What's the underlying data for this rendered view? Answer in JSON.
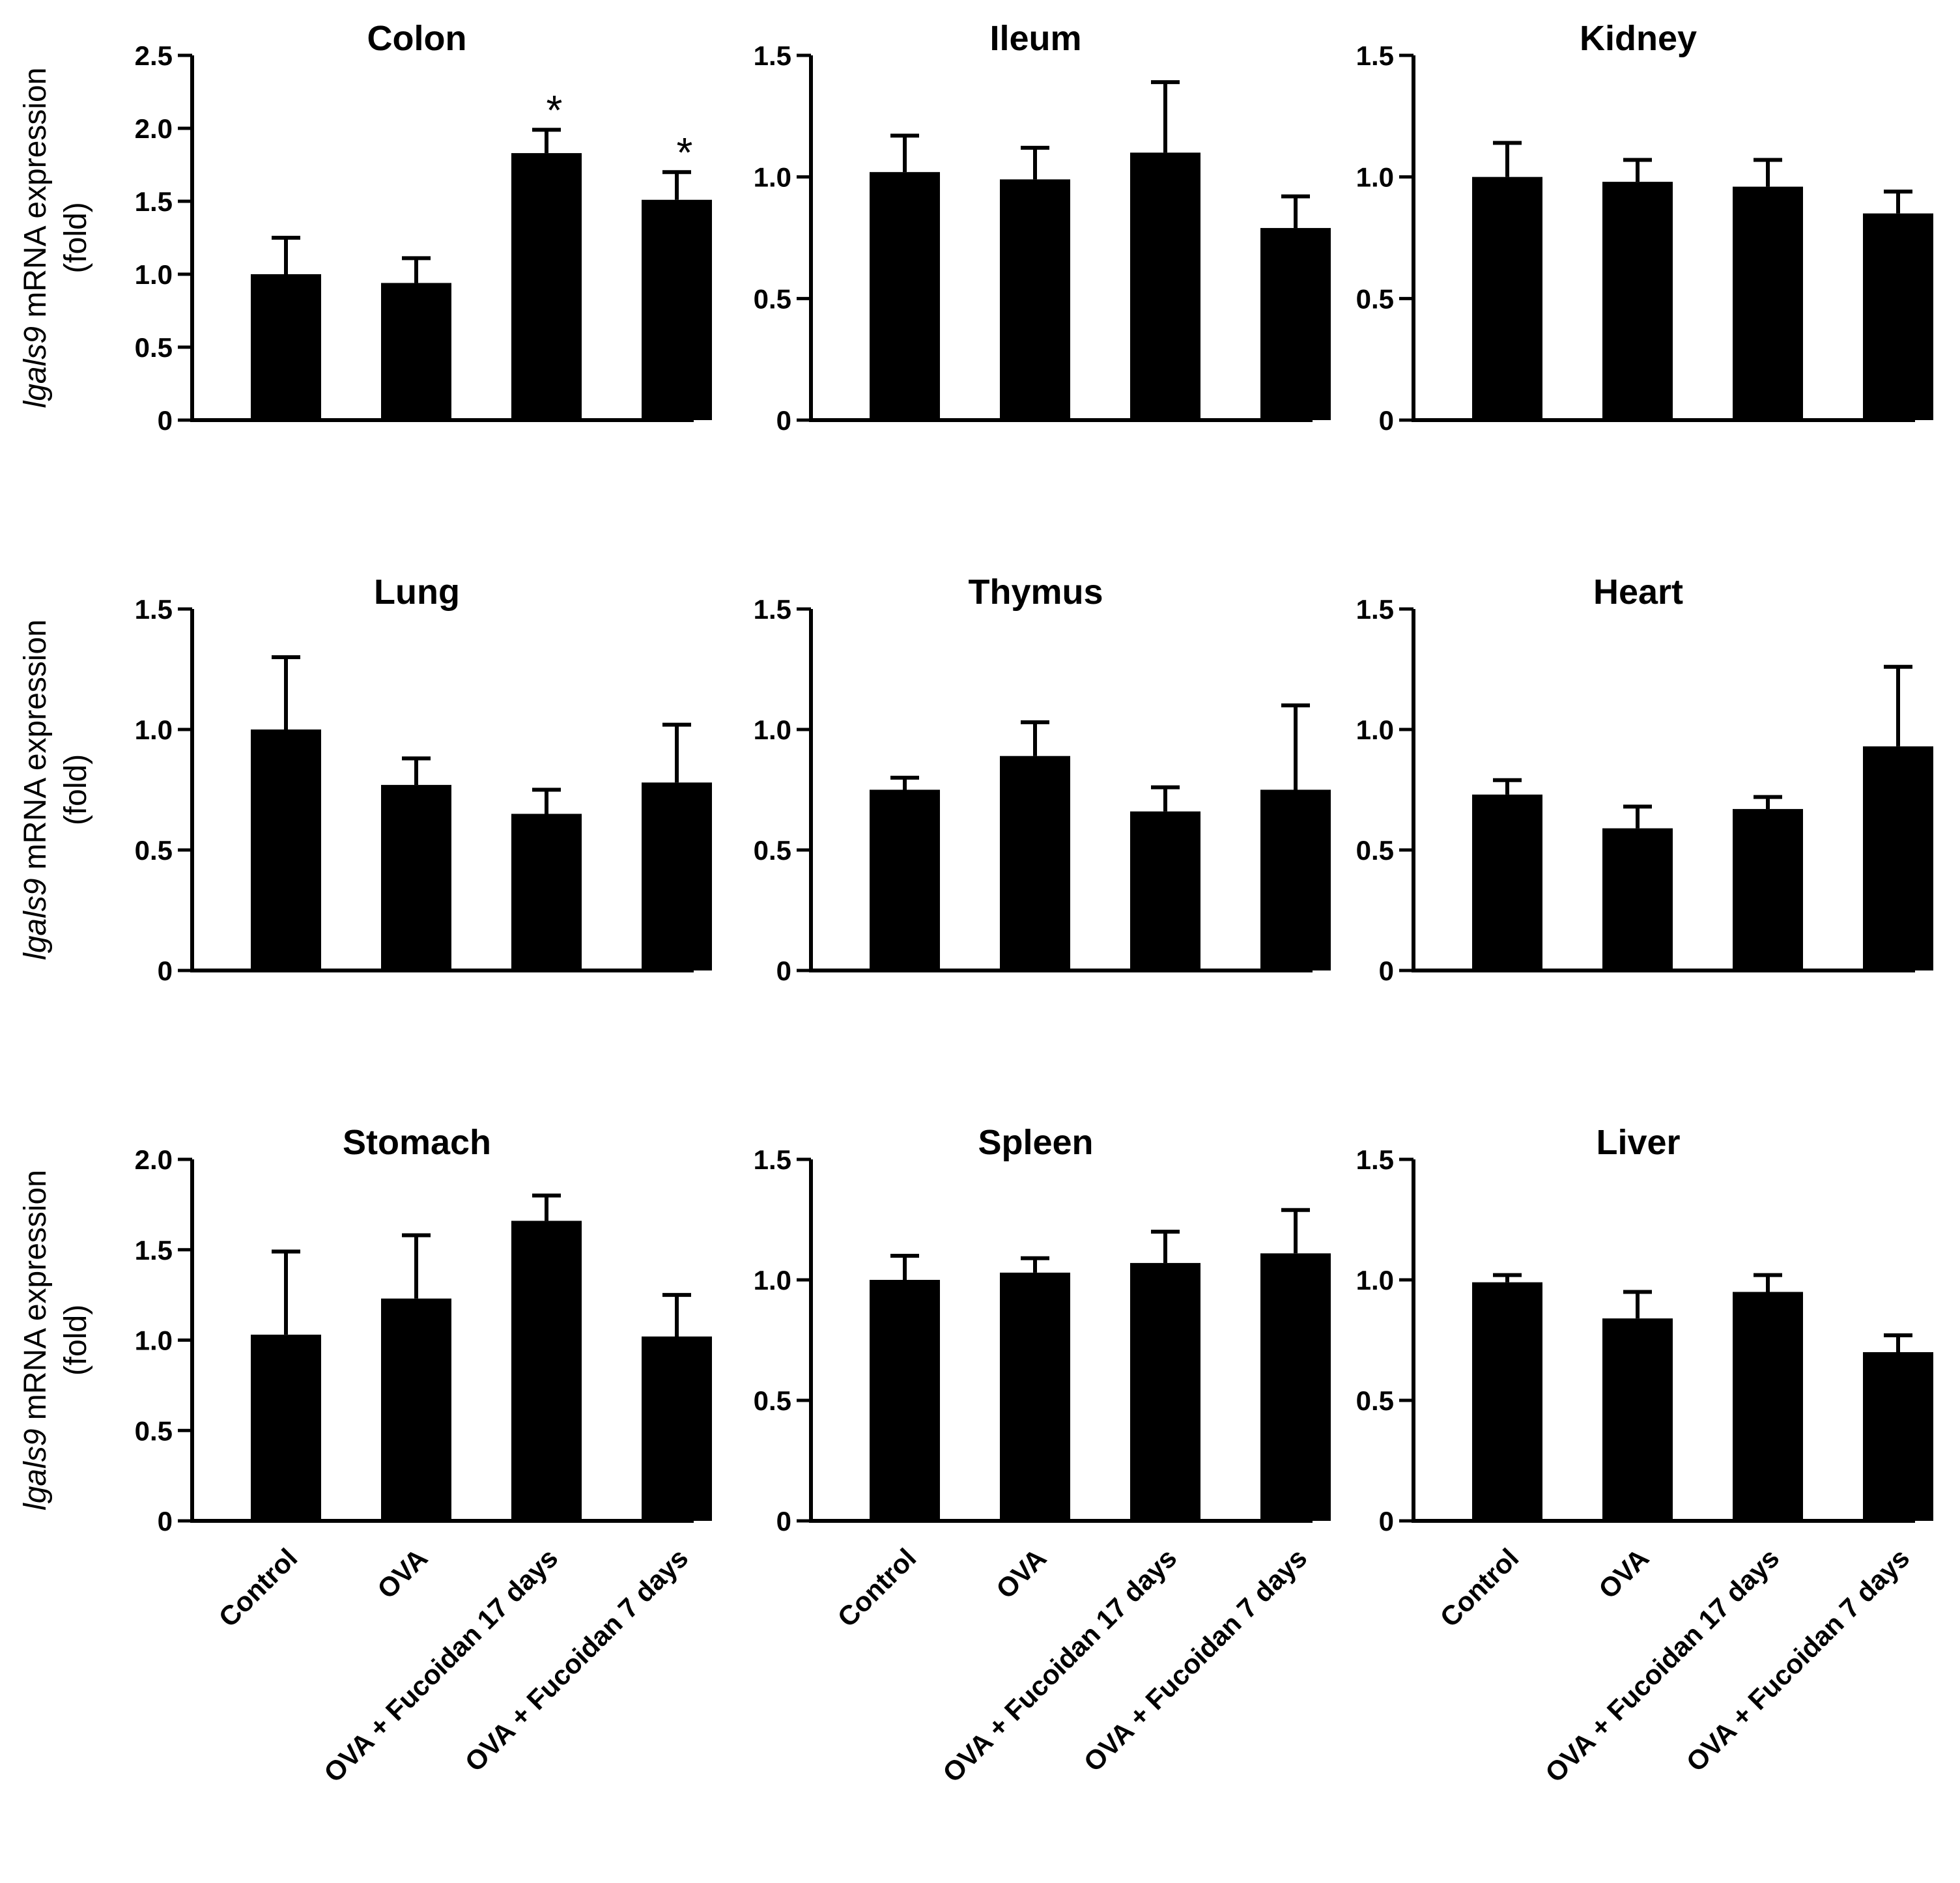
{
  "figure": {
    "ylabel_italic": "lgals9",
    "ylabel_rest": " mRNA expression",
    "ylabel_unit": "(fold)",
    "categories": [
      "Control",
      "OVA",
      "OVA + Fucoidan 17 days",
      "OVA + Fucoidan 7 days"
    ],
    "bar_color": "#000000"
  },
  "chart_data": [
    {
      "type": "bar",
      "title": "Colon",
      "ylim": [
        0,
        2.5
      ],
      "yticks": [
        0,
        0.5,
        1.0,
        1.5,
        2.0,
        2.5
      ],
      "tick_labels": [
        "0",
        "0.5",
        "1.0",
        "1.5",
        "2.0",
        "2.5"
      ],
      "categories": [
        "Control",
        "OVA",
        "OVA + Fucoidan 17 days",
        "OVA + Fucoidan 7 days"
      ],
      "values": [
        1.0,
        0.94,
        1.83,
        1.51
      ],
      "errors": [
        0.25,
        0.17,
        0.16,
        0.19
      ],
      "significance": [
        "",
        "",
        "*",
        "*"
      ]
    },
    {
      "type": "bar",
      "title": "Ileum",
      "ylim": [
        0,
        1.5
      ],
      "yticks": [
        0,
        0.5,
        1.0,
        1.5
      ],
      "tick_labels": [
        "0",
        "0.5",
        "1.0",
        "1.5"
      ],
      "categories": [
        "Control",
        "OVA",
        "OVA + Fucoidan 17 days",
        "OVA + Fucoidan 7 days"
      ],
      "values": [
        1.02,
        0.99,
        1.1,
        0.79
      ],
      "errors": [
        0.15,
        0.13,
        0.29,
        0.13
      ],
      "significance": [
        "",
        "",
        "",
        ""
      ]
    },
    {
      "type": "bar",
      "title": "Kidney",
      "ylim": [
        0,
        1.5
      ],
      "yticks": [
        0,
        0.5,
        1.0,
        1.5
      ],
      "tick_labels": [
        "0",
        "0.5",
        "1.0",
        "1.5"
      ],
      "categories": [
        "Control",
        "OVA",
        "OVA + Fucoidan 17 days",
        "OVA + Fucoidan 7 days"
      ],
      "values": [
        1.0,
        0.98,
        0.96,
        0.85
      ],
      "errors": [
        0.14,
        0.09,
        0.11,
        0.09
      ],
      "significance": [
        "",
        "",
        "",
        ""
      ]
    },
    {
      "type": "bar",
      "title": "Lung",
      "ylim": [
        0,
        1.5
      ],
      "yticks": [
        0,
        0.5,
        1.0,
        1.5
      ],
      "tick_labels": [
        "0",
        "0.5",
        "1.0",
        "1.5"
      ],
      "categories": [
        "Control",
        "OVA",
        "OVA + Fucoidan 17 days",
        "OVA + Fucoidan 7 days"
      ],
      "values": [
        1.0,
        0.77,
        0.65,
        0.78
      ],
      "errors": [
        0.3,
        0.11,
        0.1,
        0.24
      ],
      "significance": [
        "",
        "",
        "",
        ""
      ]
    },
    {
      "type": "bar",
      "title": "Thymus",
      "ylim": [
        0,
        1.5
      ],
      "yticks": [
        0,
        0.5,
        1.0,
        1.5
      ],
      "tick_labels": [
        "0",
        "0.5",
        "1.0",
        "1.5"
      ],
      "categories": [
        "Control",
        "OVA",
        "OVA + Fucoidan 17 days",
        "OVA + Fucoidan 7 days"
      ],
      "values": [
        0.75,
        0.89,
        0.66,
        0.75
      ],
      "errors": [
        0.05,
        0.14,
        0.1,
        0.35
      ],
      "significance": [
        "",
        "",
        "",
        ""
      ]
    },
    {
      "type": "bar",
      "title": "Heart",
      "ylim": [
        0,
        1.5
      ],
      "yticks": [
        0,
        0.5,
        1.0,
        1.5
      ],
      "tick_labels": [
        "0",
        "0.5",
        "1.0",
        "1.5"
      ],
      "categories": [
        "Control",
        "OVA",
        "OVA + Fucoidan 17 days",
        "OVA + Fucoidan 7 days"
      ],
      "values": [
        0.73,
        0.59,
        0.67,
        0.93
      ],
      "errors": [
        0.06,
        0.09,
        0.05,
        0.33
      ],
      "significance": [
        "",
        "",
        "",
        ""
      ]
    },
    {
      "type": "bar",
      "title": "Stomach",
      "ylim": [
        0,
        2.0
      ],
      "yticks": [
        0,
        0.5,
        1.0,
        1.5,
        2.0
      ],
      "tick_labels": [
        "0",
        "0.5",
        "1.0",
        "1.5",
        "2.0"
      ],
      "categories": [
        "Control",
        "OVA",
        "OVA + Fucoidan 17 days",
        "OVA + Fucoidan 7 days"
      ],
      "values": [
        1.03,
        1.23,
        1.66,
        1.02
      ],
      "errors": [
        0.46,
        0.35,
        0.14,
        0.23
      ],
      "significance": [
        "",
        "",
        "",
        ""
      ]
    },
    {
      "type": "bar",
      "title": "Spleen",
      "ylim": [
        0,
        1.5
      ],
      "yticks": [
        0,
        0.5,
        1.0,
        1.5
      ],
      "tick_labels": [
        "0",
        "0.5",
        "1.0",
        "1.5"
      ],
      "categories": [
        "Control",
        "OVA",
        "OVA + Fucoidan 17 days",
        "OVA + Fucoidan 7 days"
      ],
      "values": [
        1.0,
        1.03,
        1.07,
        1.11
      ],
      "errors": [
        0.1,
        0.06,
        0.13,
        0.18
      ],
      "significance": [
        "",
        "",
        "",
        ""
      ]
    },
    {
      "type": "bar",
      "title": "Liver",
      "ylim": [
        0,
        1.5
      ],
      "yticks": [
        0,
        0.5,
        1.0,
        1.5
      ],
      "tick_labels": [
        "0",
        "0.5",
        "1.0",
        "1.5"
      ],
      "categories": [
        "Control",
        "OVA",
        "OVA + Fucoidan 17 days",
        "OVA + Fucoidan 7 days"
      ],
      "values": [
        0.99,
        0.84,
        0.95,
        0.7
      ],
      "errors": [
        0.03,
        0.11,
        0.07,
        0.07
      ],
      "significance": [
        "",
        "",
        "",
        ""
      ]
    }
  ]
}
